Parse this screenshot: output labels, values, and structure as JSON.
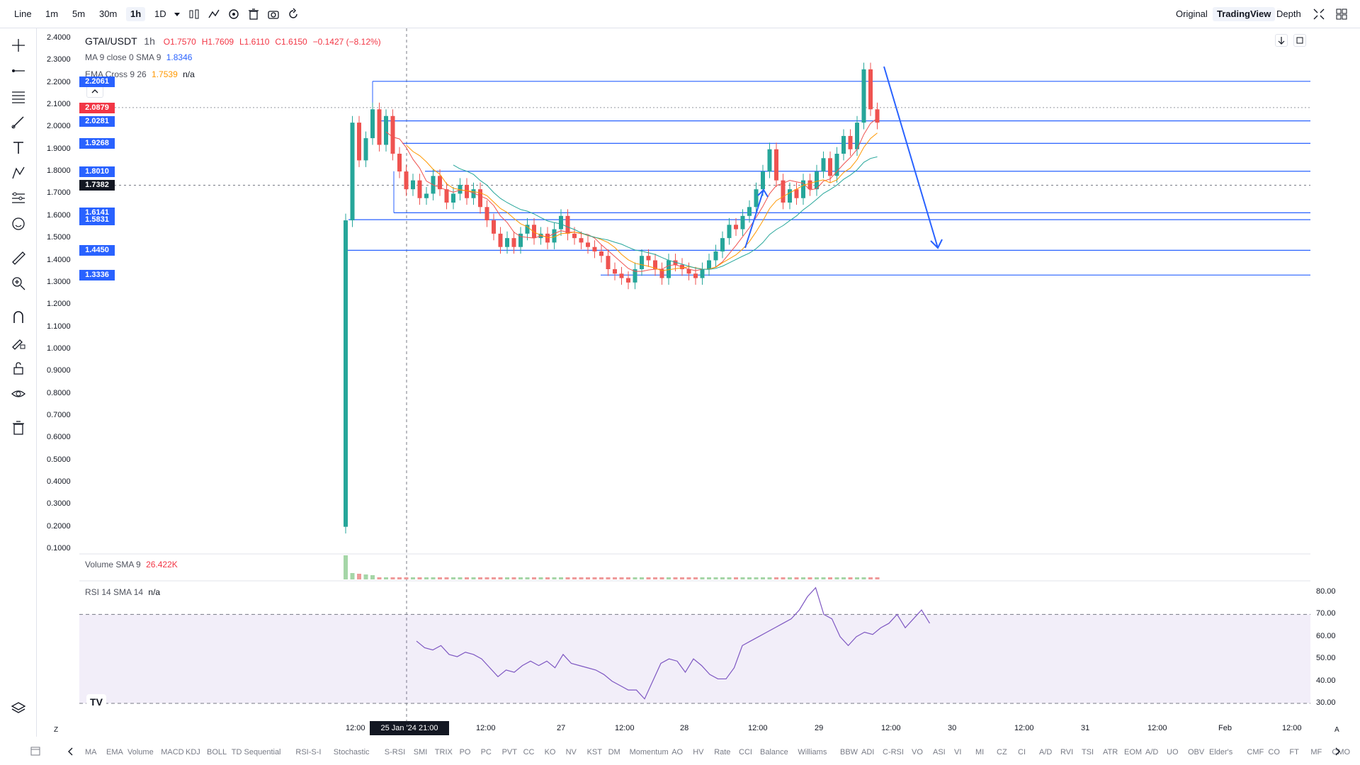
{
  "toolbar": {
    "chart_type": "Line",
    "intervals": [
      "1m",
      "5m",
      "30m",
      "1h",
      "1D"
    ],
    "active_interval": "1h",
    "views": [
      "Original",
      "TradingView",
      "Depth"
    ],
    "active_view": "TradingView"
  },
  "legend": {
    "symbol": "GTAI/USDT",
    "interval": "1h",
    "open": "O1.7570",
    "high": "H1.7609",
    "low": "L1.6110",
    "close": "C1.6150",
    "change": "−0.1427 (−8.12%)",
    "ma_label": "MA 9 close 0 SMA 9",
    "ma_value": "1.8346",
    "ema_label": "EMA Cross 9 26",
    "ema_value": "1.7539",
    "ema_value2": "n/a",
    "volume_label": "Volume SMA 9",
    "volume_value": "26.422K",
    "rsi_label": "RSI 14 SMA 14",
    "rsi_value": "n/a"
  },
  "price_axis": [
    "2.4000",
    "2.3000",
    "2.2000",
    "2.1000",
    "2.0000",
    "1.9000",
    "1.8000",
    "1.7000",
    "1.6000",
    "1.5000",
    "1.4000",
    "1.3000",
    "1.2000",
    "1.1000",
    "1.0000",
    "0.9000",
    "0.8000",
    "0.7000",
    "0.6000",
    "0.5000",
    "0.4000",
    "0.3000",
    "0.2000",
    "0.1000"
  ],
  "price_labels": [
    {
      "text": "2.2061",
      "color": "#2962ff"
    },
    {
      "text": "2.0879",
      "color": "#f23645"
    },
    {
      "text": "2.0281",
      "color": "#2962ff"
    },
    {
      "text": "1.9268",
      "color": "#2962ff"
    },
    {
      "text": "1.8010",
      "color": "#2962ff"
    },
    {
      "text": "1.7382",
      "color": "#131722"
    },
    {
      "text": "1.6141",
      "color": "#2962ff"
    },
    {
      "text": "1.5831",
      "color": "#2962ff"
    },
    {
      "text": "1.4450",
      "color": "#2962ff"
    },
    {
      "text": "1.3336",
      "color": "#2962ff"
    }
  ],
  "rsi_axis": [
    "80.00",
    "70.00",
    "60.00",
    "50.00",
    "40.00",
    "30.00"
  ],
  "time_axis": [
    "12:00",
    "12:00",
    "27",
    "12:00",
    "28",
    "12:00",
    "29",
    "12:00",
    "30",
    "12:00",
    "31",
    "12:00",
    "Feb",
    "12:00"
  ],
  "crosshair_time": "25 Jan '24   21:00",
  "bottom_indicators": [
    "MA",
    "EMA",
    "Volume",
    "MACD",
    "KDJ",
    "BOLL",
    "TD Sequential",
    "RSI-S-I",
    "Stochastic",
    "S-RSI",
    "SMI",
    "TRIX",
    "PO",
    "PC",
    "PVT",
    "CC",
    "KO",
    "NV",
    "KST",
    "DM",
    "Momentum",
    "AO",
    "HV",
    "Rate",
    "CCI",
    "Balance",
    "Williams",
    "BBW",
    "ADI",
    "C-RSI",
    "VO",
    "ASI",
    "VI",
    "MI",
    "CZ",
    "CI",
    "A/D",
    "RVI",
    "TSI",
    "ATR",
    "EOM",
    "A/D",
    "UO",
    "OBV",
    "Elder's",
    "CMF",
    "CO",
    "FT",
    "MF",
    "CMO"
  ],
  "colors": {
    "up": "#26a69a",
    "down": "#ef5350",
    "line_blue": "#2962ff",
    "rsi": "#7e57c2"
  }
}
